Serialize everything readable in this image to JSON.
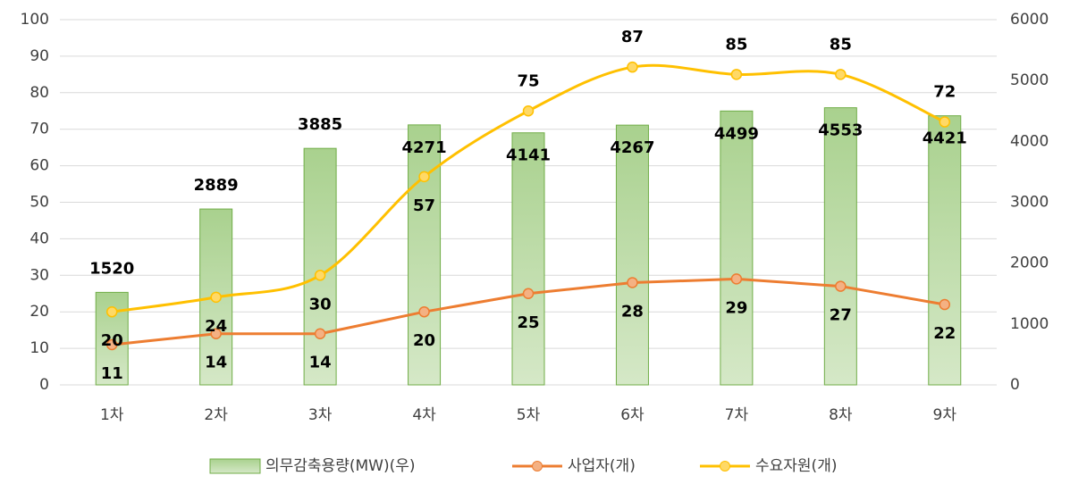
{
  "chart_data": {
    "type": "bar-line",
    "categories": [
      "1차",
      "2차",
      "3차",
      "4차",
      "5차",
      "6차",
      "7차",
      "8차",
      "9차"
    ],
    "series": [
      {
        "name": "의무감축용량(MW)(우)",
        "type": "bar",
        "axis": "y2",
        "color": "#a9d18e",
        "values": [
          1520,
          2889,
          3885,
          4271,
          4141,
          4267,
          4499,
          4553,
          4421
        ]
      },
      {
        "name": "사업자(개)",
        "type": "line",
        "color": "#ed7d31",
        "values": [
          11,
          14,
          14,
          20,
          25,
          28,
          29,
          27,
          22
        ]
      },
      {
        "name": "수요자원(개)",
        "type": "line",
        "color": "#ffc000",
        "values": [
          20,
          24,
          30,
          57,
          75,
          87,
          85,
          85,
          72
        ]
      }
    ],
    "ylim": [
      0,
      100
    ],
    "yticks": [
      0,
      10,
      20,
      30,
      40,
      50,
      60,
      70,
      80,
      90,
      100
    ],
    "y2lim": [
      0,
      6000
    ],
    "y2ticks": [
      0,
      1000,
      2000,
      3000,
      4000,
      5000,
      6000
    ],
    "grid": true,
    "legend": "bottom"
  }
}
